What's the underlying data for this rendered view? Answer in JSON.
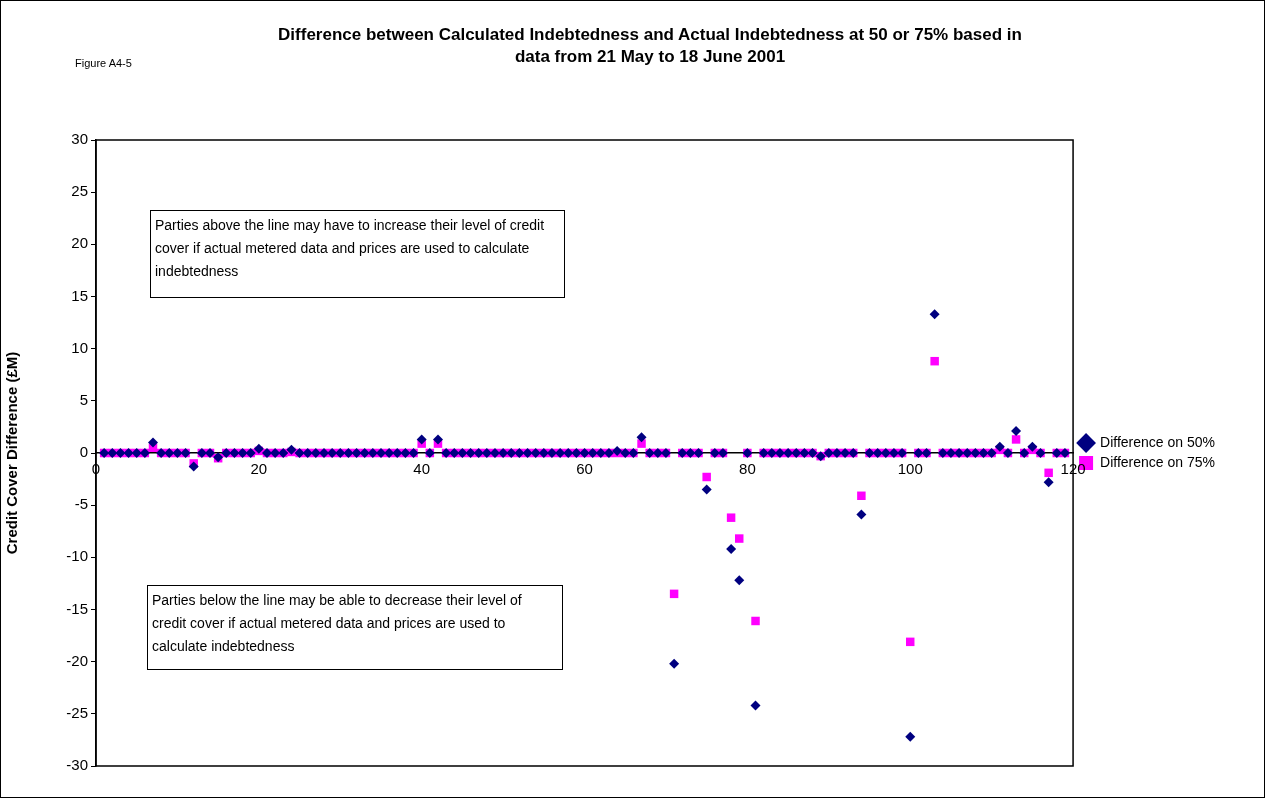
{
  "chart_data": {
    "type": "scatter",
    "title": "Difference between Calculated Indebtedness and Actual Indebtedness at 50 or 75% based in data from 21 May to 18 June 2001",
    "ylabel": "Credit Cover Difference (£M)",
    "annotations": [
      "Figure A4-5",
      "Parties above the line may have to increase their level of credit cover if actual metered data and prices are used to calculate indebtedness",
      "Parties below the line may be able to decrease their level of credit cover if actual metered data and prices are used to calculate indebtedness"
    ],
    "x": [
      1,
      2,
      3,
      4,
      5,
      6,
      7,
      8,
      9,
      10,
      11,
      12,
      13,
      14,
      15,
      16,
      17,
      18,
      19,
      20,
      21,
      22,
      23,
      24,
      25,
      26,
      27,
      28,
      29,
      30,
      31,
      32,
      33,
      34,
      35,
      36,
      37,
      38,
      39,
      40,
      41,
      42,
      43,
      44,
      45,
      46,
      47,
      48,
      49,
      50,
      51,
      52,
      53,
      54,
      55,
      56,
      57,
      58,
      59,
      60,
      61,
      62,
      63,
      64,
      65,
      66,
      67,
      68,
      69,
      70,
      71,
      72,
      73,
      74,
      75,
      76,
      77,
      78,
      79,
      80,
      81,
      82,
      83,
      84,
      85,
      86,
      87,
      88,
      89,
      90,
      91,
      92,
      93,
      94,
      95,
      96,
      97,
      98,
      99,
      100,
      101,
      102,
      103,
      104,
      105,
      106,
      107,
      108,
      109,
      110,
      111,
      112,
      113,
      114,
      115,
      116,
      117,
      118,
      119
    ],
    "series": [
      {
        "name": "Difference on 50%",
        "color": "#000080",
        "marker": "diamond",
        "values": [
          0,
          0,
          0,
          0,
          0,
          0,
          1.0,
          0,
          0,
          0,
          0,
          -1.3,
          0,
          0,
          -0.4,
          0,
          0,
          0,
          0,
          0.4,
          0,
          0,
          0,
          0.3,
          0,
          0,
          0,
          0,
          0,
          0,
          0,
          0,
          0,
          0,
          0,
          0,
          0,
          0,
          0,
          1.3,
          0,
          1.3,
          0,
          0,
          0,
          0,
          0,
          0,
          0,
          0,
          0,
          0,
          0,
          0,
          0,
          0,
          0,
          0,
          0,
          0,
          0,
          0,
          0,
          0.2,
          0,
          0,
          1.5,
          0,
          0,
          0,
          -20.2,
          0,
          0,
          0,
          -3.5,
          0,
          0,
          -9.2,
          -12.2,
          0,
          -24.2,
          0,
          0,
          0,
          0,
          0,
          0,
          0,
          -0.3,
          0,
          0,
          0,
          0,
          -5.9,
          0,
          0,
          0,
          0,
          0,
          -27.2,
          0,
          0,
          13.3,
          0,
          0,
          0,
          0,
          0,
          0,
          0,
          0.6,
          0,
          2.1,
          0,
          0.6,
          0,
          -2.8,
          0,
          0
        ]
      },
      {
        "name": "Difference on 75%",
        "color": "#ff00ff",
        "marker": "square",
        "values": [
          0,
          0,
          0,
          0,
          0,
          0,
          0.5,
          0,
          0,
          0,
          0,
          -1.0,
          0,
          0,
          -0.5,
          0,
          0,
          0,
          0,
          0.2,
          0,
          0,
          0,
          0.1,
          0,
          0,
          0,
          0,
          0,
          0,
          0,
          0,
          0,
          0,
          0,
          0,
          0,
          0,
          0,
          0.9,
          0,
          0.9,
          0,
          0,
          0,
          0,
          0,
          0,
          0,
          0,
          0,
          0,
          0,
          0,
          0,
          0,
          0,
          0,
          0,
          0,
          0,
          0,
          0,
          0,
          0,
          0,
          0.9,
          0,
          0,
          0,
          -13.5,
          0,
          0,
          0,
          -2.3,
          0,
          0,
          -6.2,
          -8.2,
          0,
          -16.1,
          0,
          0,
          0,
          0,
          0,
          0,
          0,
          -0.3,
          0,
          0,
          0,
          0,
          -4.1,
          0,
          0,
          0,
          0,
          0,
          -18.1,
          0,
          0,
          8.8,
          0,
          0,
          0,
          0,
          0,
          0,
          0,
          0.3,
          0,
          1.3,
          0,
          0.3,
          0,
          -1.9,
          0,
          0
        ]
      }
    ],
    "xlim": [
      0,
      120
    ],
    "xticks": [
      0,
      20,
      40,
      60,
      80,
      100,
      120
    ],
    "ylim": [
      -30,
      30
    ],
    "yticks": [
      -30,
      -25,
      -20,
      -15,
      -10,
      -5,
      0,
      5,
      10,
      15,
      20,
      25,
      30
    ],
    "grid": false,
    "legend": "right"
  }
}
